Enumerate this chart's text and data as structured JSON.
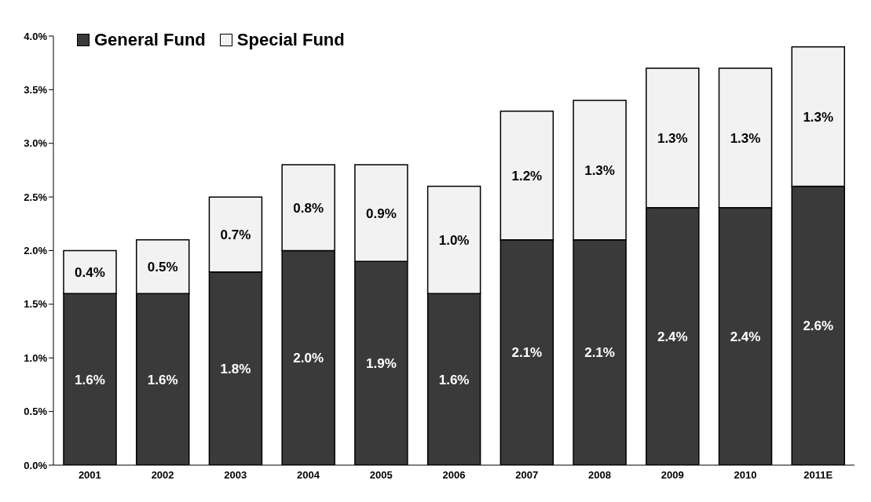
{
  "chart_data": {
    "type": "bar",
    "stacked": true,
    "categories": [
      "2001",
      "2002",
      "2003",
      "2004",
      "2005",
      "2006",
      "2007",
      "2008",
      "2009",
      "2010",
      "2011E"
    ],
    "series": [
      {
        "name": "General Fund",
        "color": "#3a3a3a",
        "values": [
          1.6,
          1.6,
          1.8,
          2.0,
          1.9,
          1.6,
          2.1,
          2.1,
          2.4,
          2.4,
          2.6
        ],
        "value_labels": [
          "1.6%",
          "1.6%",
          "1.8%",
          "2.0%",
          "1.9%",
          "1.6%",
          "2.1%",
          "2.1%",
          "2.4%",
          "2.4%",
          "2.6%"
        ]
      },
      {
        "name": "Special Fund",
        "color": "#f2f2f2",
        "values": [
          0.4,
          0.5,
          0.7,
          0.8,
          0.9,
          1.0,
          1.2,
          1.3,
          1.3,
          1.3,
          1.3
        ],
        "value_labels": [
          "0.4%",
          "0.5%",
          "0.7%",
          "0.8%",
          "0.9%",
          "1.0%",
          "1.2%",
          "1.3%",
          "1.3%",
          "1.3%",
          "1.3%"
        ]
      }
    ],
    "ylim": [
      0,
      4
    ],
    "yticks": [
      {
        "value": 0,
        "label": "0.0%"
      },
      {
        "value": 0.5,
        "label": "0.5%"
      },
      {
        "value": 1,
        "label": "1.0%"
      },
      {
        "value": 1.5,
        "label": "1.5%"
      },
      {
        "value": 2,
        "label": "2.0%"
      },
      {
        "value": 2.5,
        "label": "2.5%"
      },
      {
        "value": 3,
        "label": "3.0%"
      },
      {
        "value": 3.5,
        "label": "3.5%"
      },
      {
        "value": 4,
        "label": "4.0%"
      }
    ],
    "grid": false,
    "legend": "top left"
  }
}
